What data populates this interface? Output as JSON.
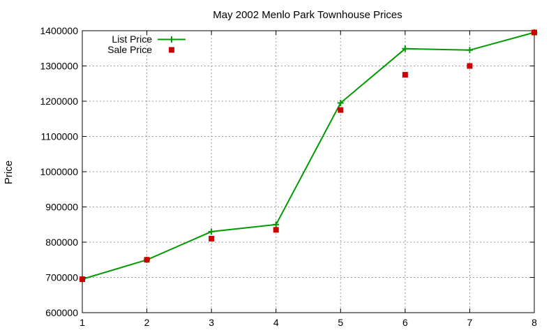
{
  "chart_data": {
    "type": "line",
    "title": "May 2002 Menlo Park Townhouse Prices",
    "xlabel": "",
    "ylabel": "Price",
    "xlim": [
      1,
      8
    ],
    "ylim": [
      600000,
      1400000
    ],
    "x_ticks": [
      "1",
      "2",
      "3",
      "4",
      "5",
      "6",
      "7",
      "8"
    ],
    "y_ticks": [
      "600000",
      "700000",
      "800000",
      "900000",
      "1000000",
      "1100000",
      "1200000",
      "1300000",
      "1400000"
    ],
    "x": [
      1,
      2,
      3,
      4,
      5,
      6,
      7,
      8
    ],
    "grid": true,
    "legend_position": "top-left",
    "series": [
      {
        "name": "List Price",
        "style": "line-points",
        "marker": "plus",
        "color": "#009900",
        "values": [
          695000,
          750000,
          830000,
          850000,
          1195000,
          1349000,
          1345000,
          1395000
        ]
      },
      {
        "name": "Sale Price",
        "style": "points",
        "marker": "square",
        "color": "#cc0000",
        "values": [
          695000,
          750000,
          810000,
          835000,
          1175000,
          1275000,
          1300000,
          1395000
        ]
      }
    ]
  }
}
